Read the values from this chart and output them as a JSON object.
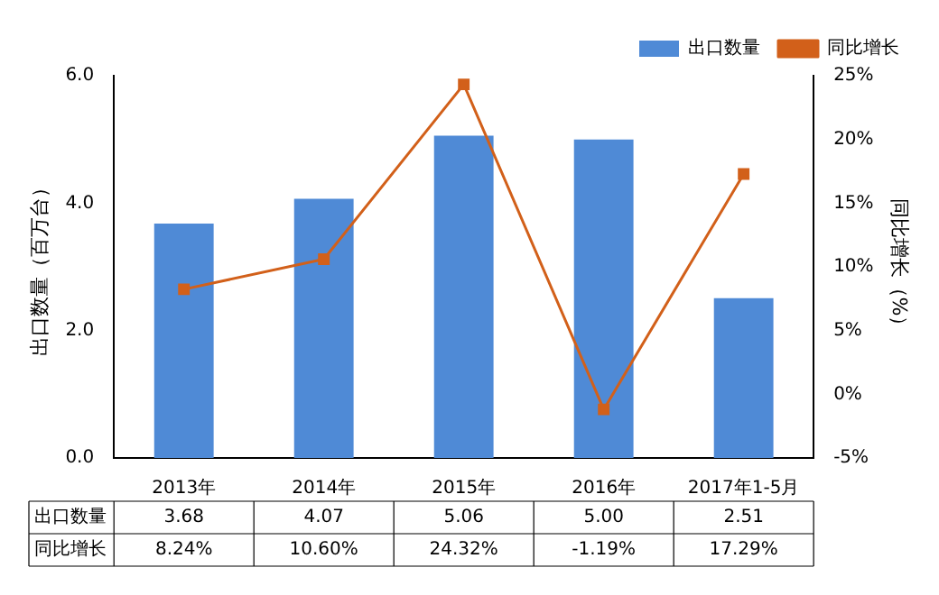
{
  "chart_data": {
    "type": "bar",
    "ylabel": "出口数量（百万台）",
    "y2label": "同比增长（%）",
    "categories": [
      "2013年",
      "2014年",
      "2015年",
      "2016年",
      "2017年1-5月"
    ],
    "series": [
      {
        "name": "出口数量",
        "color": "#4f8ad6",
        "values": [
          3.68,
          4.07,
          5.06,
          5.0,
          2.51
        ],
        "value_labels": [
          "3.68",
          "4.07",
          "5.06",
          "5.00",
          "2.51"
        ]
      },
      {
        "name": "同比增长",
        "type": "line",
        "axis": "y2",
        "color": "#d2601a",
        "marker": "square",
        "line_style": "solid",
        "values": [
          8.24,
          10.6,
          24.32,
          -1.19,
          17.29
        ],
        "value_labels": [
          "8.24%",
          "10.60%",
          "24.32%",
          "-1.19%",
          "17.29%"
        ]
      }
    ],
    "ylim": [
      0,
      6
    ],
    "yticks": [
      {
        "value": 0,
        "label": "0.0"
      },
      {
        "value": 2,
        "label": "2.0"
      },
      {
        "value": 4,
        "label": "4.0"
      },
      {
        "value": 6,
        "label": "6.0"
      }
    ],
    "y2lim": [
      -5,
      25
    ],
    "y2ticks": [
      {
        "value": -5,
        "label": "-5%"
      },
      {
        "value": 0,
        "label": "0%"
      },
      {
        "value": 5,
        "label": "5%"
      },
      {
        "value": 10,
        "label": "10%"
      },
      {
        "value": 15,
        "label": "15%"
      },
      {
        "value": 20,
        "label": "20%"
      },
      {
        "value": 25,
        "label": "25%"
      }
    ],
    "legend": "top right",
    "grid": false
  }
}
